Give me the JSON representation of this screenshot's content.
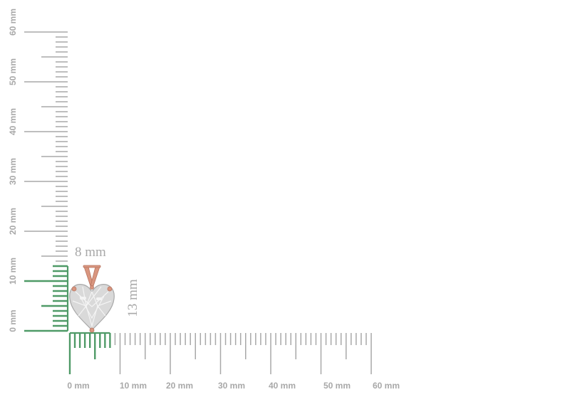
{
  "colors": {
    "tick": "#a8a8a8",
    "highlight": "#4f9a67",
    "label": "#a8a8a8",
    "metal": "#d9967f",
    "metal_dark": "#b87561",
    "stone_light": "#f4f4f4",
    "stone_mid": "#d9d9d9",
    "stone_dark": "#a9a9a9"
  },
  "ruler": {
    "unit": "mm",
    "min": 0,
    "max": 60,
    "horizontal_labels": [
      "0 mm",
      "10 mm",
      "20 mm",
      "30 mm",
      "40 mm",
      "50 mm",
      "60 mm"
    ],
    "vertical_labels": [
      "0 mm",
      "10 mm",
      "20 mm",
      "30 mm",
      "40 mm",
      "50 mm",
      "60 mm"
    ],
    "highlight_width_mm": 8,
    "highlight_height_mm": 13
  },
  "dimensions": {
    "width_label": "8 mm",
    "height_label": "13 mm"
  },
  "product": {
    "stone_icon": "heart-diamond-icon",
    "setting_icon": "v-bail-icon"
  }
}
